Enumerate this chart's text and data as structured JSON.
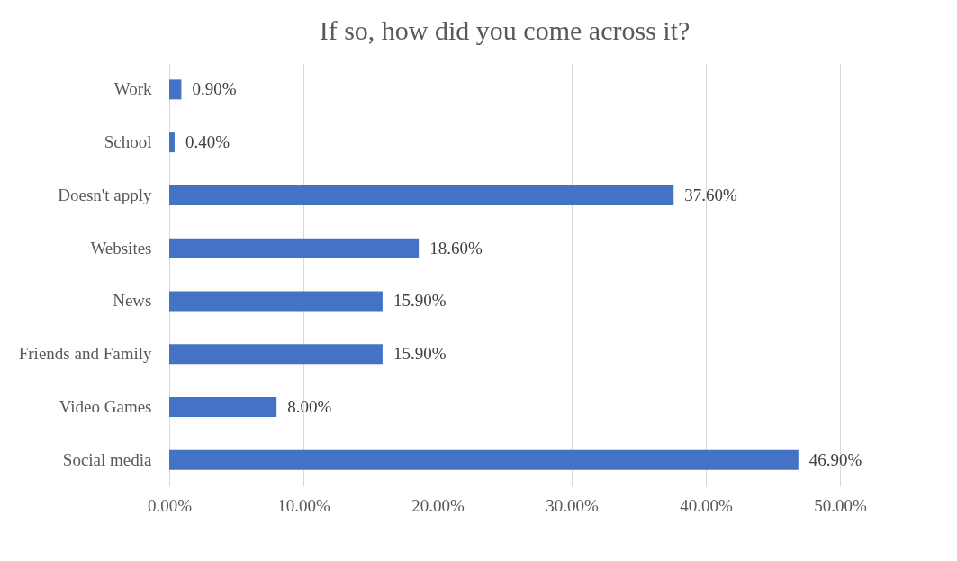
{
  "chart_data": {
    "type": "bar",
    "orientation": "horizontal",
    "title": "If so, how did you come across it?",
    "categories": [
      "Work",
      "School",
      "Doesn't apply",
      "Websites",
      "News",
      "Friends and Family",
      "Video Games",
      "Social media"
    ],
    "values": [
      0.9,
      0.4,
      37.6,
      18.6,
      15.9,
      15.9,
      8.0,
      46.9
    ],
    "value_labels": [
      "0.90%",
      "0.40%",
      "37.60%",
      "18.60%",
      "15.90%",
      "15.90%",
      "8.00%",
      "46.90%"
    ],
    "color": "#4472c4",
    "xlim": [
      0,
      50
    ],
    "xticks": [
      {
        "value": 0,
        "label": "0.00%"
      },
      {
        "value": 10,
        "label": "10.00%"
      },
      {
        "value": 20,
        "label": "20.00%"
      },
      {
        "value": 30,
        "label": "30.00%"
      },
      {
        "value": 40,
        "label": "40.00%"
      },
      {
        "value": 50,
        "label": "50.00%"
      }
    ],
    "grid": "x"
  }
}
